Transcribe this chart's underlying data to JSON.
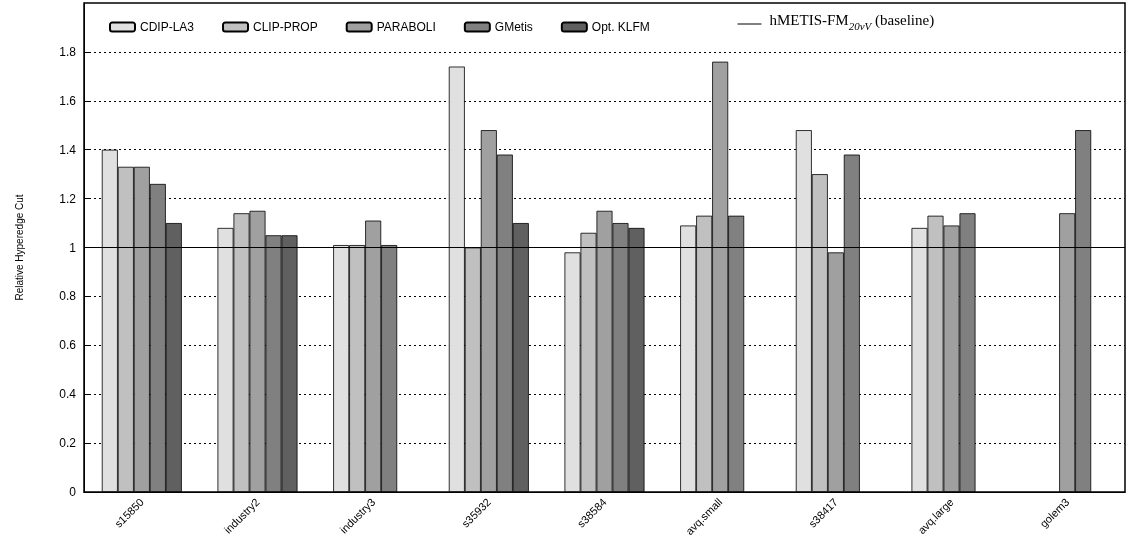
{
  "chart_data": {
    "type": "bar",
    "ylabel": "Relative Hyperedge Cut",
    "categories": [
      "s15850",
      "industry2",
      "industry3",
      "s35932",
      "s38584",
      "avq.small",
      "s38417",
      "avq.large",
      "golem3"
    ],
    "series": [
      {
        "name": "CDIP-LA3",
        "color": "#e0e0e0",
        "values": [
          1.4,
          1.08,
          1.01,
          1.74,
          0.98,
          1.09,
          1.48,
          1.08,
          null
        ]
      },
      {
        "name": "CLIP-PROP",
        "color": "#c0c0c0",
        "values": [
          1.33,
          1.14,
          1.01,
          1.0,
          1.06,
          1.13,
          1.3,
          1.13,
          null
        ]
      },
      {
        "name": "PARABOLI",
        "color": "#a0a0a0",
        "values": [
          1.33,
          1.15,
          1.11,
          1.48,
          1.15,
          1.76,
          0.98,
          1.09,
          1.14
        ]
      },
      {
        "name": "GMetis",
        "color": "#808080",
        "values": [
          1.26,
          1.05,
          1.01,
          1.38,
          1.1,
          1.13,
          1.38,
          1.14,
          1.48
        ]
      },
      {
        "name": "Opt. KLFM",
        "color": "#606060",
        "values": [
          1.1,
          1.05,
          null,
          1.1,
          1.08,
          null,
          null,
          null,
          null
        ]
      }
    ],
    "ylim": [
      0,
      2
    ],
    "yticks": [
      0,
      0.2,
      0.4,
      0.6,
      0.8,
      1,
      1.2,
      1.4,
      1.6,
      1.8
    ],
    "ref_lines": [
      {
        "axis": "y",
        "value": 1,
        "label": "hMETIS-FM$_{20vV}$ (baseline)",
        "color": "#000000",
        "line_style": "solid"
      }
    ],
    "grid": "y",
    "legend": "top"
  }
}
